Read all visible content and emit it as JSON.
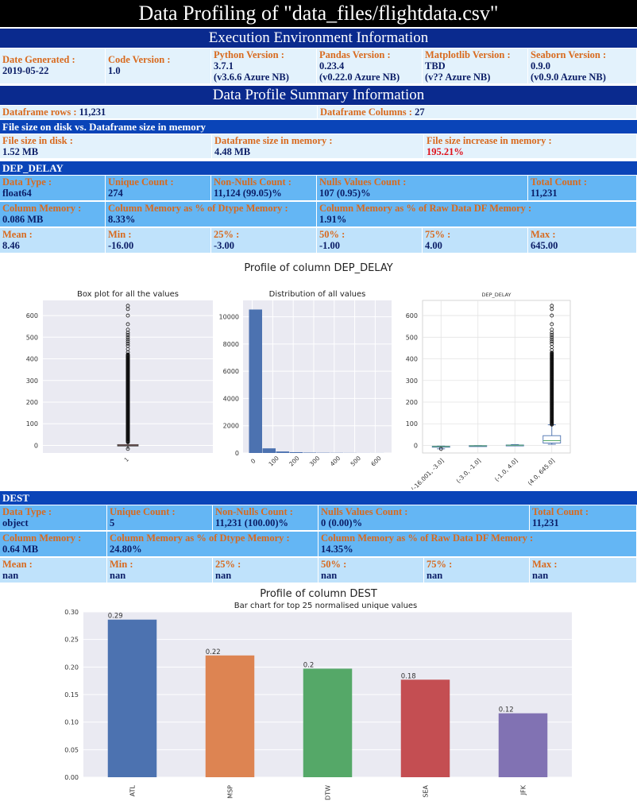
{
  "title": "Data Profiling of \"data_files/flightdata.csv\"",
  "env_section": "Execution Environment Information",
  "env": [
    {
      "label": "Date Generated :",
      "lines": [
        "2019-05-22"
      ]
    },
    {
      "label": "Code Version :",
      "lines": [
        "1.0"
      ]
    },
    {
      "label": "Python Version :",
      "lines": [
        "3.7.1",
        "(v3.6.6 Azure NB)"
      ]
    },
    {
      "label": "Pandas Version :",
      "lines": [
        "0.23.4",
        "(v0.22.0 Azure NB)"
      ]
    },
    {
      "label": "Matplotlib Version :",
      "lines": [
        "TBD",
        "(v?? Azure NB)"
      ]
    },
    {
      "label": "Seaborn Version :",
      "lines": [
        "0.9.0",
        "(v0.9.0 Azure NB)"
      ]
    }
  ],
  "summary_section": "Data Profile Summary Information",
  "summary": {
    "rows_label": "Dataframe rows :",
    "rows_value": "11,231",
    "cols_label": "Dataframe Columns :",
    "cols_value": "27",
    "filesize_banner": "File size on disk vs. Dataframe size in memory",
    "disk_label": "File size in disk :",
    "disk_value": "1.52 MB",
    "mem_label": "Dataframe size in memory :",
    "mem_value": "4.48 MB",
    "incr_label": "File size increase in memory :",
    "incr_value": "195.21%"
  },
  "columns": [
    {
      "name": "DEP_DELAY",
      "row1": [
        {
          "label": "Data Type :",
          "value": "float64"
        },
        {
          "label": "Unique Count :",
          "value": "274"
        },
        {
          "label": "Non-Nulls Count :",
          "value": "11,124 (99.05)%"
        },
        {
          "label": "Nulls Values Count :",
          "value": "107 (0.95)%"
        },
        {
          "label": "Total Count :",
          "value": "11,231"
        }
      ],
      "row2": [
        {
          "label": "Column Memory :",
          "value": "0.086 MB"
        },
        {
          "label": "Column Memory as % of Dtype Memory :",
          "value": "8.33%"
        },
        {
          "label": "Column Memory as % of Raw Data DF Memory :",
          "value": "1.91%"
        }
      ],
      "row3": [
        {
          "label": "Mean :",
          "value": "8.46"
        },
        {
          "label": "Min :",
          "value": "-16.00"
        },
        {
          "label": "25% :",
          "value": "-3.00"
        },
        {
          "label": "50% :",
          "value": "-1.00"
        },
        {
          "label": "75% :",
          "value": "4.00"
        },
        {
          "label": "Max :",
          "value": "645.00"
        }
      ]
    },
    {
      "name": "DEST",
      "row1": [
        {
          "label": "Data Type :",
          "value": "object"
        },
        {
          "label": "Unique Count :",
          "value": "5"
        },
        {
          "label": "Non-Nulls Count :",
          "value": "11,231 (100.00)%"
        },
        {
          "label": "Nulls Values Count :",
          "value": "0 (0.00)%"
        },
        {
          "label": "Total Count :",
          "value": "11,231"
        }
      ],
      "row2": [
        {
          "label": "Column Memory :",
          "value": "0.64 MB"
        },
        {
          "label": "Column Memory as % of Dtype Memory :",
          "value": "24.80%"
        },
        {
          "label": "Column Memory as % of Raw Data DF Memory :",
          "value": "14.35%"
        }
      ],
      "row3": [
        {
          "label": "Mean :",
          "value": "nan"
        },
        {
          "label": "Min :",
          "value": "nan"
        },
        {
          "label": "25% :",
          "value": "nan"
        },
        {
          "label": "50% :",
          "value": "nan"
        },
        {
          "label": "75% :",
          "value": "nan"
        },
        {
          "label": "Max :",
          "value": "nan"
        }
      ]
    }
  ],
  "chart_data": [
    {
      "type": "box",
      "figure_title": "Profile of column  DEP_DELAY",
      "title": "Box plot for all the values",
      "x_ticks": [
        "1"
      ],
      "y_ticks": [
        0,
        100,
        200,
        300,
        400,
        500,
        600
      ],
      "ylim": [
        -35,
        670
      ],
      "stats": {
        "min": -16,
        "q1": -3,
        "median": -1,
        "q3": 4,
        "whisker_high": 14,
        "max": 645
      },
      "outliers_range": [
        15,
        645
      ],
      "grid": true
    },
    {
      "type": "bar",
      "title": "Distribution of all values",
      "bin_edges": [
        -16,
        50,
        116,
        182,
        248,
        314,
        380,
        446,
        512,
        578,
        645
      ],
      "counts": [
        10530,
        340,
        110,
        60,
        30,
        20,
        15,
        10,
        5,
        4
      ],
      "x_ticks": [
        0,
        100,
        200,
        300,
        400,
        500,
        600
      ],
      "y_ticks": [
        0,
        2000,
        4000,
        6000,
        8000,
        10000
      ],
      "xlim": [
        -45,
        680
      ],
      "ylim": [
        0,
        11200
      ],
      "grid": true
    },
    {
      "type": "box",
      "title": "DEP_DELAY",
      "categories": [
        "(-16.001, -3.0]",
        "(-3.0, -1.0]",
        "(-1.0, 4.0]",
        "(4.0, 645.0]"
      ],
      "y_ticks": [
        0,
        100,
        200,
        300,
        400,
        500,
        600
      ],
      "ylim": [
        -35,
        670
      ],
      "boxes": [
        {
          "min": -16,
          "q1": -8,
          "median": -5,
          "q3": -4,
          "max": -3
        },
        {
          "min": -3,
          "q1": -2,
          "median": -2,
          "q3": -1,
          "max": -1
        },
        {
          "min": 0,
          "q1": 0,
          "median": 1,
          "q3": 2,
          "max": 4
        },
        {
          "min": 5,
          "q1": 11,
          "median": 22,
          "q3": 45,
          "max": 95
        }
      ],
      "outliers_range": [
        96,
        645
      ],
      "grid": true
    },
    {
      "type": "bar",
      "figure_title": "Profile of column  DEST",
      "title": "Bar chart for top 25 normalised unique values",
      "categories": [
        "ATL",
        "MSP",
        "DTW",
        "SEA",
        "JFK"
      ],
      "values": [
        0.286,
        0.221,
        0.197,
        0.177,
        0.116
      ],
      "data_labels": [
        "0.29",
        "0.22",
        "0.2",
        "0.18",
        "0.12"
      ],
      "colors": [
        "#4c72b0",
        "#dd8452",
        "#55a868",
        "#c44e52",
        "#8172b3"
      ],
      "y_ticks": [
        "0.00",
        "0.05",
        "0.10",
        "0.15",
        "0.20",
        "0.25",
        "0.30"
      ],
      "ylim": [
        0,
        0.3
      ],
      "grid": true
    }
  ]
}
